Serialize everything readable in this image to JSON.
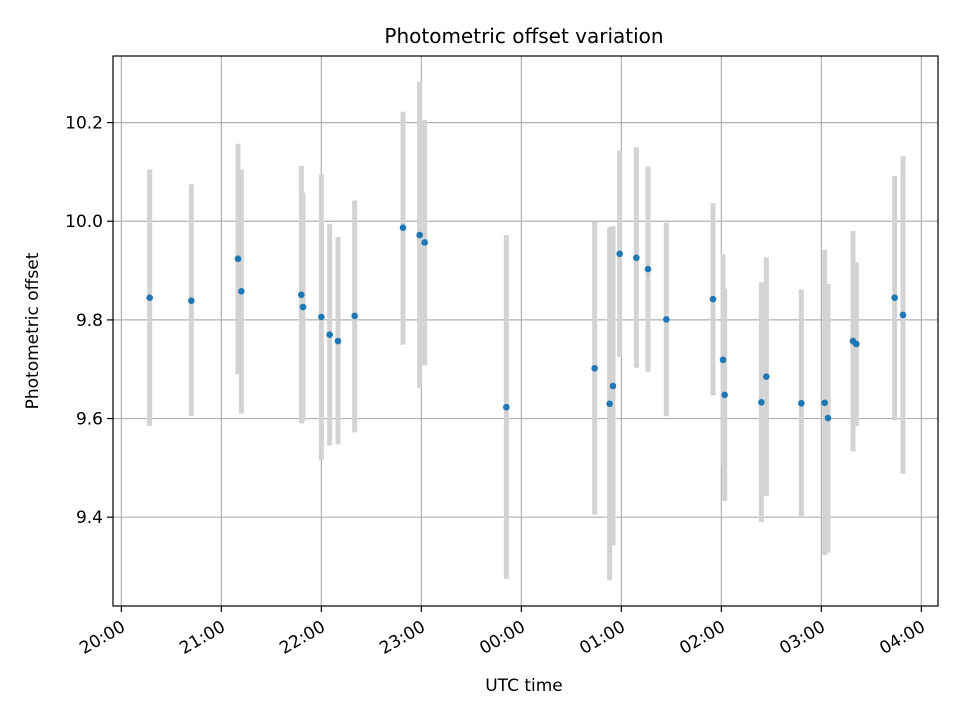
{
  "chart_data": {
    "type": "scatter",
    "title": "Photometric offset variation",
    "xlabel": "UTC time",
    "ylabel": "Photometric offset",
    "x_start_label": "20:00",
    "x_end_label": "04:00",
    "xlim": [
      "19:55",
      "04:10"
    ],
    "ylim": [
      9.22,
      10.335
    ],
    "grid": true,
    "x_ticks": [
      "20:00",
      "21:00",
      "22:00",
      "23:00",
      "00:00",
      "01:00",
      "02:00",
      "03:00",
      "04:00"
    ],
    "y_ticks": [
      9.4,
      9.6,
      9.8,
      10.0,
      10.2
    ],
    "y_tick_labels": [
      "9.4",
      "9.6",
      "9.8",
      "10.0",
      "10.2"
    ],
    "colors": {
      "point": "#1f77b4",
      "errorbar": "#d3d3d3",
      "grid": "#b0b0b0"
    },
    "series": [
      {
        "points": [
          {
            "time": "20:17",
            "y": 9.845,
            "err": [
              9.585,
              10.105
            ]
          },
          {
            "time": "20:42",
            "y": 9.839,
            "err": [
              9.605,
              10.075
            ]
          },
          {
            "time": "21:10",
            "y": 9.924,
            "err": [
              9.69,
              10.157
            ]
          },
          {
            "time": "21:12",
            "y": 9.858,
            "err": [
              9.61,
              10.105
            ]
          },
          {
            "time": "21:48",
            "y": 9.851,
            "err": [
              9.59,
              10.112
            ]
          },
          {
            "time": "21:49",
            "y": 9.826,
            "err": [
              9.595,
              10.058
            ]
          },
          {
            "time": "22:00",
            "y": 9.806,
            "err": [
              9.515,
              10.095
            ]
          },
          {
            "time": "22:05",
            "y": 9.77,
            "err": [
              9.545,
              9.995
            ]
          },
          {
            "time": "22:10",
            "y": 9.757,
            "err": [
              9.548,
              9.968
            ]
          },
          {
            "time": "22:20",
            "y": 9.808,
            "err": [
              9.572,
              10.042
            ]
          },
          {
            "time": "22:49",
            "y": 9.987,
            "err": [
              9.75,
              10.222
            ]
          },
          {
            "time": "22:59",
            "y": 9.972,
            "err": [
              9.662,
              10.283
            ]
          },
          {
            "time": "23:02",
            "y": 9.957,
            "err": [
              9.708,
              10.205
            ]
          },
          {
            "time": "23:51",
            "y": 9.623,
            "err": [
              9.275,
              9.972
            ]
          },
          {
            "time": "00:44",
            "y": 9.702,
            "err": [
              9.405,
              9.999
            ]
          },
          {
            "time": "00:53",
            "y": 9.63,
            "err": [
              9.272,
              9.988
            ]
          },
          {
            "time": "00:55",
            "y": 9.666,
            "err": [
              9.343,
              9.99
            ]
          },
          {
            "time": "00:59",
            "y": 9.934,
            "err": [
              9.725,
              10.143
            ]
          },
          {
            "time": "01:09",
            "y": 9.926,
            "err": [
              9.703,
              10.15
            ]
          },
          {
            "time": "01:16",
            "y": 9.903,
            "err": [
              9.695,
              10.111
            ]
          },
          {
            "time": "01:27",
            "y": 9.801,
            "err": [
              9.605,
              9.997
            ]
          },
          {
            "time": "01:55",
            "y": 9.842,
            "err": [
              9.647,
              10.037
            ]
          },
          {
            "time": "02:01",
            "y": 9.719,
            "err": [
              9.505,
              9.933
            ]
          },
          {
            "time": "02:02",
            "y": 9.648,
            "err": [
              9.433,
              9.863
            ]
          },
          {
            "time": "02:24",
            "y": 9.633,
            "err": [
              9.39,
              9.876
            ]
          },
          {
            "time": "02:27",
            "y": 9.685,
            "err": [
              9.443,
              9.927
            ]
          },
          {
            "time": "02:48",
            "y": 9.631,
            "err": [
              9.4,
              9.862
            ]
          },
          {
            "time": "03:02",
            "y": 9.632,
            "err": [
              9.323,
              9.942
            ]
          },
          {
            "time": "03:04",
            "y": 9.601,
            "err": [
              9.328,
              9.873
            ]
          },
          {
            "time": "03:19",
            "y": 9.757,
            "err": [
              9.533,
              9.98
            ]
          },
          {
            "time": "03:21",
            "y": 9.751,
            "err": [
              9.585,
              9.917
            ]
          },
          {
            "time": "03:44",
            "y": 9.845,
            "err": [
              9.597,
              10.092
            ]
          },
          {
            "time": "03:49",
            "y": 9.81,
            "err": [
              9.488,
              10.132
            ]
          }
        ]
      }
    ]
  }
}
